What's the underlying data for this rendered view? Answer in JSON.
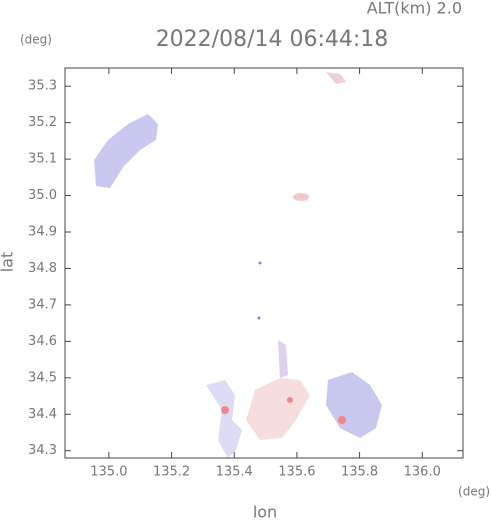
{
  "chart_data": {
    "type": "map",
    "title": "2022/08/14 06:44:18",
    "altitude_label": "ALT(km) 2.0",
    "x_label": "lon",
    "y_label": "lat",
    "x_unit": "(deg)",
    "y_unit": "(deg)",
    "xlim": [
      134.86,
      136.13
    ],
    "ylim": [
      34.28,
      35.35
    ],
    "xticks": [
      {
        "value": 135.0,
        "label": "135.0"
      },
      135.2,
      135.4,
      135.6,
      135.8,
      {
        "value": 136.0,
        "label": "136.0"
      }
    ],
    "yticks": [
      34.3,
      34.4,
      34.5,
      34.6,
      34.7,
      34.8,
      34.9,
      {
        "value": 35.0,
        "label": "35.0"
      },
      35.1,
      35.2,
      35.3
    ]
  }
}
